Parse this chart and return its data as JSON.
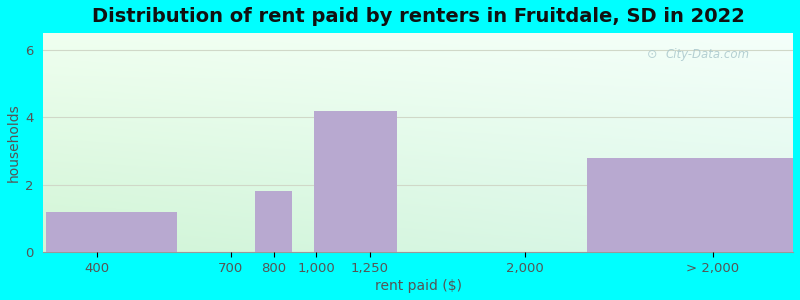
{
  "title": "Distribution of rent paid by renters in Fruitdale, SD in 2022",
  "xlabel": "rent paid ($)",
  "ylabel": "households",
  "bar_color": "#b8a9d0",
  "ytick_positions": [
    0,
    2,
    4,
    6
  ],
  "ylim": [
    0,
    6.5
  ],
  "bg_outer": "#00ffff",
  "grid_color": "#d0d8c8",
  "title_fontsize": 14,
  "axis_fontsize": 10,
  "tick_fontsize": 9.5,
  "watermark": "City-Data.com"
}
